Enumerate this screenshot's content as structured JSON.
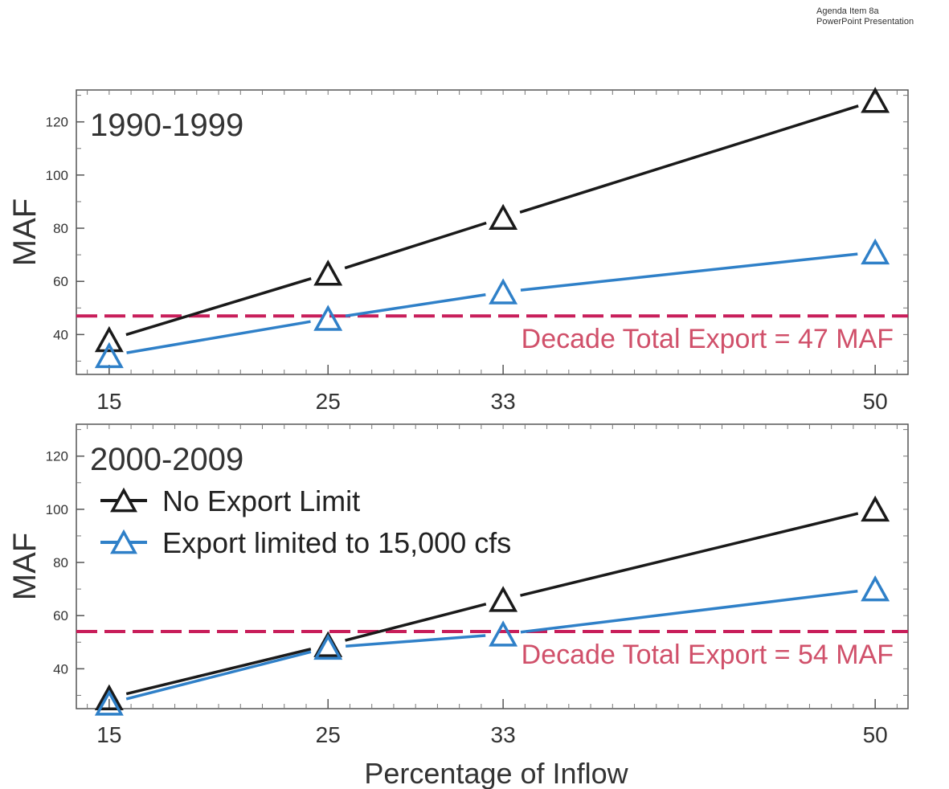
{
  "header": {
    "line1": "Agenda Item 8a",
    "line2": "PowerPoint Presentation"
  },
  "colors": {
    "no_limit": "#1a1a1a",
    "limited": "#2f80c8",
    "reference": "#c81e5a",
    "reference_text": "#d0506a"
  },
  "chart_data": [
    {
      "type": "line",
      "title": "1990-1999",
      "ylabel": "MAF",
      "xlabel": "",
      "x": [
        15,
        25,
        33,
        50
      ],
      "xticks": [
        "15",
        "25",
        "33",
        "50"
      ],
      "xlim": [
        13.5,
        51.5
      ],
      "ylim": [
        25,
        132
      ],
      "yticks": [
        "40",
        "60",
        "80",
        "100",
        "120"
      ],
      "series": [
        {
          "name": "No Export Limit",
          "values": [
            38,
            63,
            84,
            128
          ]
        },
        {
          "name": "Export limited to 15,000 cfs",
          "values": [
            32,
            46,
            56,
            71
          ]
        }
      ],
      "reference_line": {
        "value": 47,
        "label": "Decade Total Export = 47 MAF"
      },
      "grid": false,
      "legend": false
    },
    {
      "type": "line",
      "title": "2000-2009",
      "ylabel": "MAF",
      "xlabel": "Percentage of Inflow",
      "x": [
        15,
        25,
        33,
        50
      ],
      "xticks": [
        "15",
        "25",
        "33",
        "50"
      ],
      "xlim": [
        13.5,
        51.5
      ],
      "ylim": [
        25,
        132
      ],
      "yticks": [
        "40",
        "60",
        "80",
        "100",
        "120"
      ],
      "series": [
        {
          "name": "No Export Limit",
          "values": [
            29,
            49,
            66,
            100
          ]
        },
        {
          "name": "Export limited to 15,000 cfs",
          "values": [
            27,
            48,
            53,
            70
          ]
        }
      ],
      "reference_line": {
        "value": 54,
        "label": "Decade Total Export = 54 MAF"
      },
      "grid": false,
      "legend": "upper-left"
    }
  ]
}
